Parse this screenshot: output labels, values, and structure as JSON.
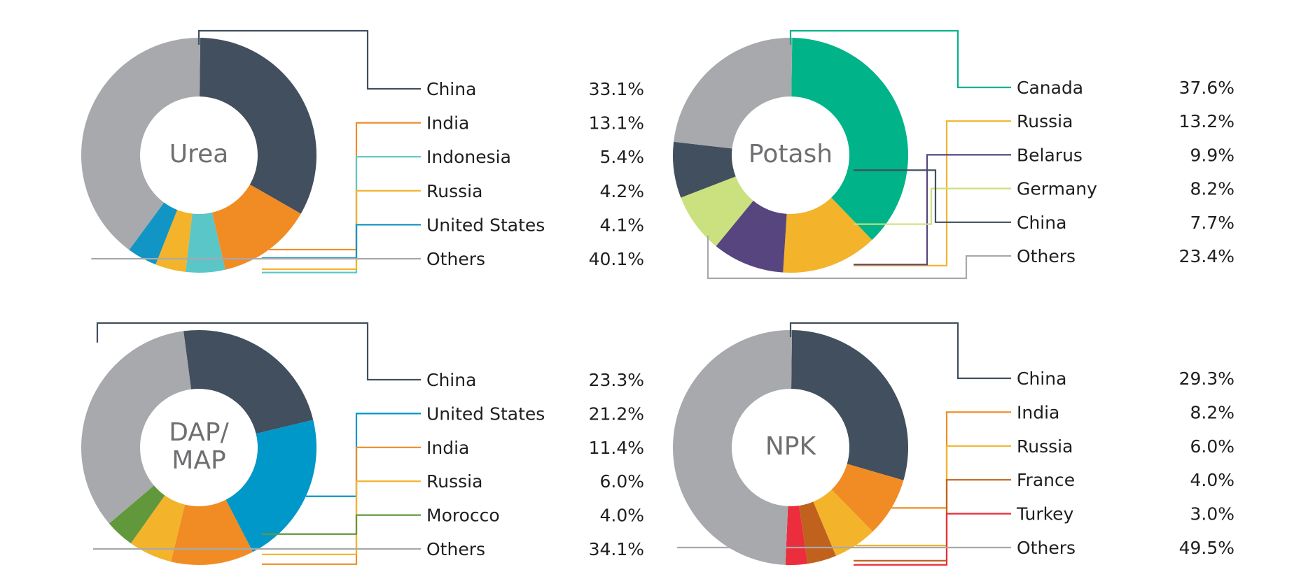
{
  "chart_data": [
    {
      "type": "pie",
      "title": "Urea",
      "slices": [
        {
          "name": "China",
          "value": 33.1,
          "label": "33.1%",
          "color": "#414f5e"
        },
        {
          "name": "India",
          "value": 13.1,
          "label": "13.1%",
          "color": "#f18b23"
        },
        {
          "name": "Indonesia",
          "value": 5.4,
          "label": "5.4%",
          "color": "#5bc6c8"
        },
        {
          "name": "Russia",
          "value": 4.2,
          "label": "4.2%",
          "color": "#f3b32a"
        },
        {
          "name": "United States",
          "value": 4.1,
          "label": "4.1%",
          "color": "#1195c4"
        },
        {
          "name": "Others",
          "value": 40.1,
          "label": "40.1%",
          "color": "#a7a9ac"
        }
      ]
    },
    {
      "type": "pie",
      "title": "Potash",
      "slices": [
        {
          "name": "Canada",
          "value": 37.6,
          "label": "37.6%",
          "color": "#00b388"
        },
        {
          "name": "Russia",
          "value": 13.2,
          "label": "13.2%",
          "color": "#f3b32a"
        },
        {
          "name": "Belarus",
          "value": 9.9,
          "label": "9.9%",
          "color": "#574580"
        },
        {
          "name": "Germany",
          "value": 8.2,
          "label": "8.2%",
          "color": "#cbe07e"
        },
        {
          "name": "China",
          "value": 7.7,
          "label": "7.7%",
          "color": "#414f5e"
        },
        {
          "name": "Others",
          "value": 23.4,
          "label": "23.4%",
          "color": "#a7a9ac"
        }
      ]
    },
    {
      "type": "pie",
      "title": "DAP/\nMAP",
      "slices": [
        {
          "name": "China",
          "value": 23.3,
          "label": "23.3%",
          "color": "#414f5e"
        },
        {
          "name": "United States",
          "value": 21.2,
          "label": "21.2%",
          "color": "#0097c9"
        },
        {
          "name": "India",
          "value": 11.4,
          "label": "11.4%",
          "color": "#f18b23"
        },
        {
          "name": "Russia",
          "value": 6.0,
          "label": "6.0%",
          "color": "#f3b32a"
        },
        {
          "name": "Morocco",
          "value": 4.0,
          "label": "4.0%",
          "color": "#62983c"
        },
        {
          "name": "Others",
          "value": 34.1,
          "label": "34.1%",
          "color": "#a7a9ac"
        }
      ]
    },
    {
      "type": "pie",
      "title": "NPK",
      "slices": [
        {
          "name": "China",
          "value": 29.3,
          "label": "29.3%",
          "color": "#414f5e"
        },
        {
          "name": "India",
          "value": 8.2,
          "label": "8.2%",
          "color": "#f18b23"
        },
        {
          "name": "Russia",
          "value": 6.0,
          "label": "6.0%",
          "color": "#f3b32a"
        },
        {
          "name": "France",
          "value": 4.0,
          "label": "4.0%",
          "color": "#c0621d"
        },
        {
          "name": "Turkey",
          "value": 3.0,
          "label": "3.0%",
          "color": "#ec2d3d"
        },
        {
          "name": "Others",
          "value": 49.5,
          "label": "49.5%",
          "color": "#a7a9ac"
        }
      ]
    }
  ]
}
